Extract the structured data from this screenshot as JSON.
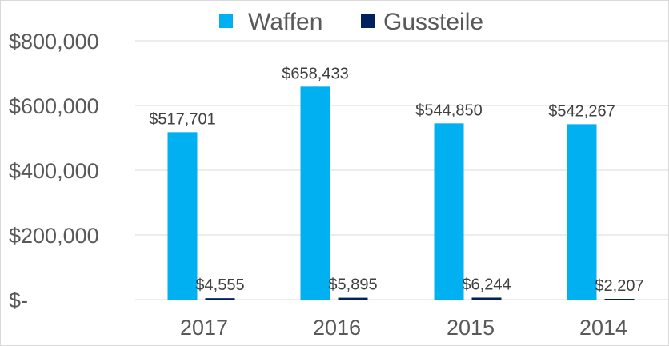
{
  "chart_data": {
    "type": "bar",
    "categories": [
      "2017",
      "2016",
      "2015",
      "2014"
    ],
    "series": [
      {
        "name": "Waffen",
        "values": [
          517701,
          658433,
          544850,
          542267
        ],
        "color": "#00b0f0"
      },
      {
        "name": "Gussteile",
        "values": [
          4555,
          5895,
          6244,
          2207
        ],
        "color": "#002060"
      }
    ],
    "data_labels": [
      [
        "$517,701",
        "$658,433",
        "$544,850",
        "$542,267"
      ],
      [
        "$4,555",
        "$5,895",
        "$6,244",
        "$2,207"
      ]
    ],
    "ylim": [
      0,
      800000
    ],
    "yticks": [
      0,
      200000,
      400000,
      600000,
      800000
    ],
    "ytick_labels": [
      "$-",
      "$200,000",
      "$400,000",
      "$600,000",
      "$800,000"
    ],
    "grid": true,
    "legend_position": "top"
  },
  "colors": {
    "gridline": "#d9d9d9",
    "axis_text": "#595959",
    "data_label_text": "#404040"
  }
}
